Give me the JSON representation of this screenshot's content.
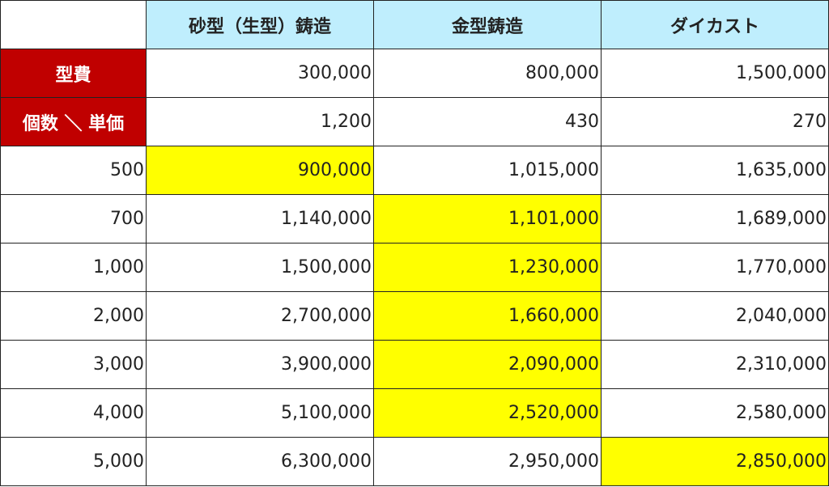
{
  "headers": [
    "",
    "砂型（生型）鋳造",
    "金型鋳造",
    "ダイカスト"
  ],
  "rows": [
    {
      "label": "型費",
      "values": [
        "300,000",
        "800,000",
        "1,500,000"
      ],
      "highlight": -1,
      "label_style": "red"
    },
    {
      "label": "個数 ＼ 単価",
      "values": [
        "1,200",
        "430",
        "270"
      ],
      "highlight": -1,
      "label_style": "red"
    },
    {
      "label": "500",
      "values": [
        "900,000",
        "1,015,000",
        "1,635,000"
      ],
      "highlight": 0,
      "label_style": "plain"
    },
    {
      "label": "700",
      "values": [
        "1,140,000",
        "1,101,000",
        "1,689,000"
      ],
      "highlight": 1,
      "label_style": "plain"
    },
    {
      "label": "1,000",
      "values": [
        "1,500,000",
        "1,230,000",
        "1,770,000"
      ],
      "highlight": 1,
      "label_style": "plain"
    },
    {
      "label": "2,000",
      "values": [
        "2,700,000",
        "1,660,000",
        "2,040,000"
      ],
      "highlight": 1,
      "label_style": "plain"
    },
    {
      "label": "3,000",
      "values": [
        "3,900,000",
        "2,090,000",
        "2,310,000"
      ],
      "highlight": 1,
      "label_style": "plain"
    },
    {
      "label": "4,000",
      "values": [
        "5,100,000",
        "2,520,000",
        "2,580,000"
      ],
      "highlight": 1,
      "label_style": "plain"
    },
    {
      "label": "5,000",
      "values": [
        "6,300,000",
        "2,950,000",
        "2,850,000"
      ],
      "highlight": 2,
      "label_style": "plain"
    }
  ],
  "colors": {
    "header_bg": "#bfeefd",
    "label_red": "#c00000",
    "highlight": "#ffff00",
    "border": "#222222"
  }
}
